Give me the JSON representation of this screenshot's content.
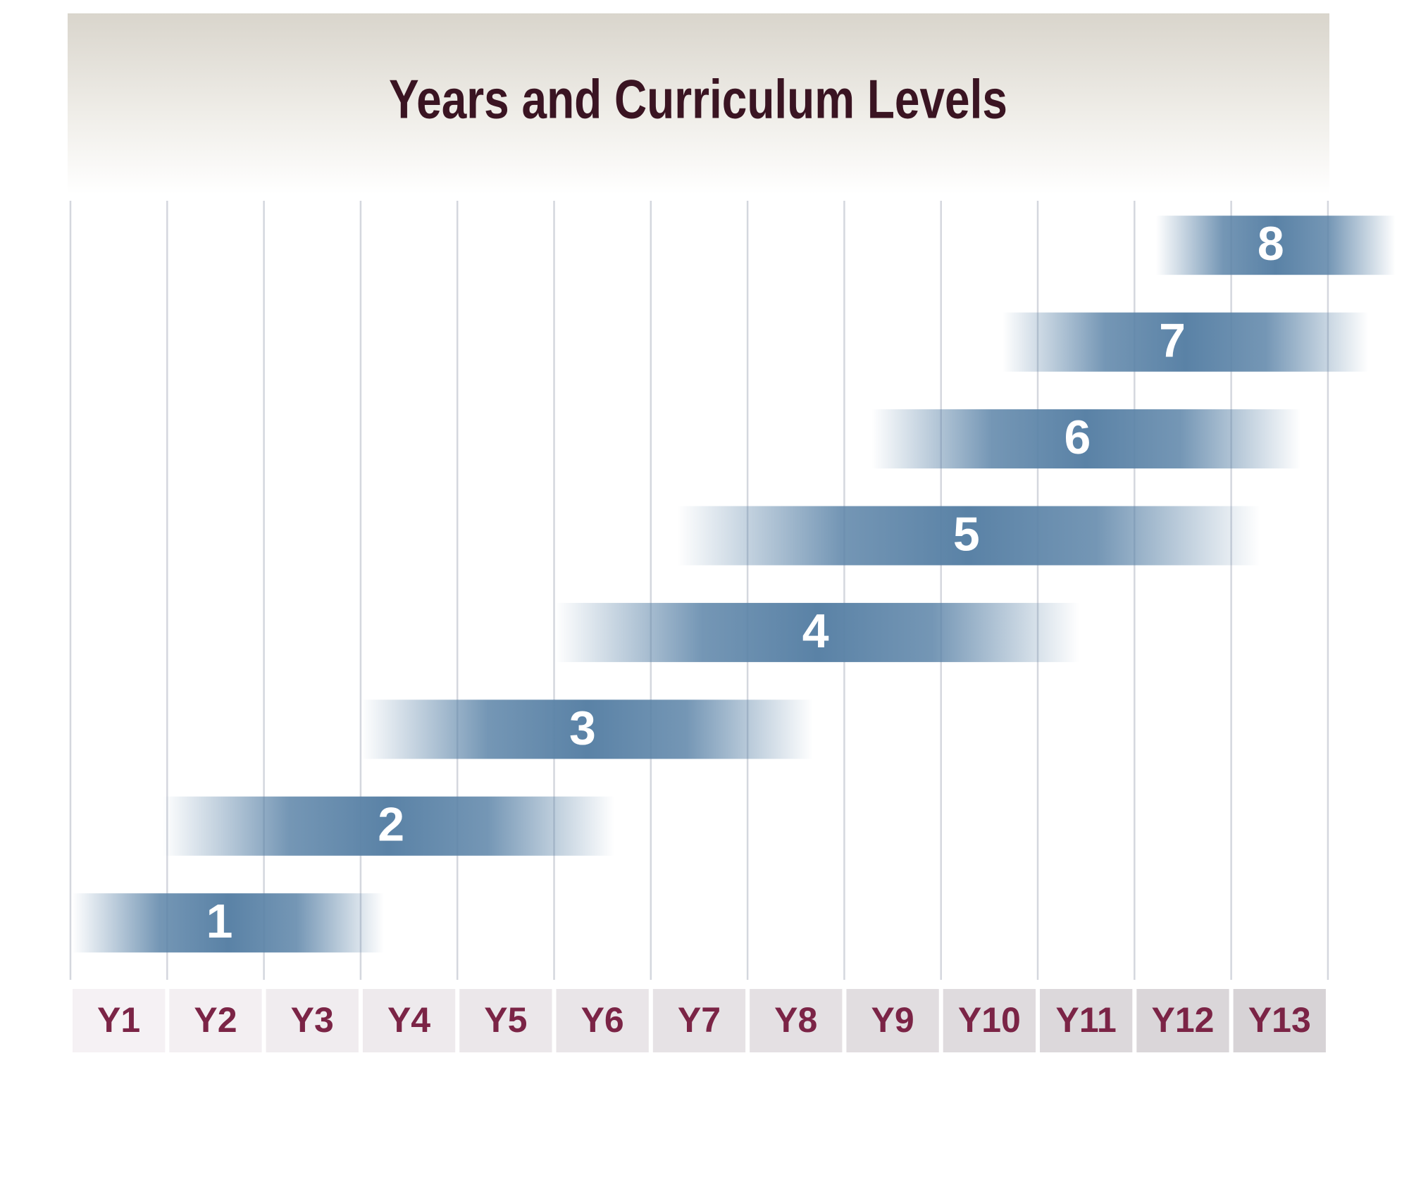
{
  "title": "Years and Curriculum Levels",
  "years": [
    "Y1",
    "Y2",
    "Y3",
    "Y4",
    "Y5",
    "Y6",
    "Y7",
    "Y8",
    "Y9",
    "Y10",
    "Y11",
    "Y12",
    "Y13"
  ],
  "levels": [
    "1",
    "2",
    "3",
    "4",
    "5",
    "6",
    "7",
    "8"
  ]
}
